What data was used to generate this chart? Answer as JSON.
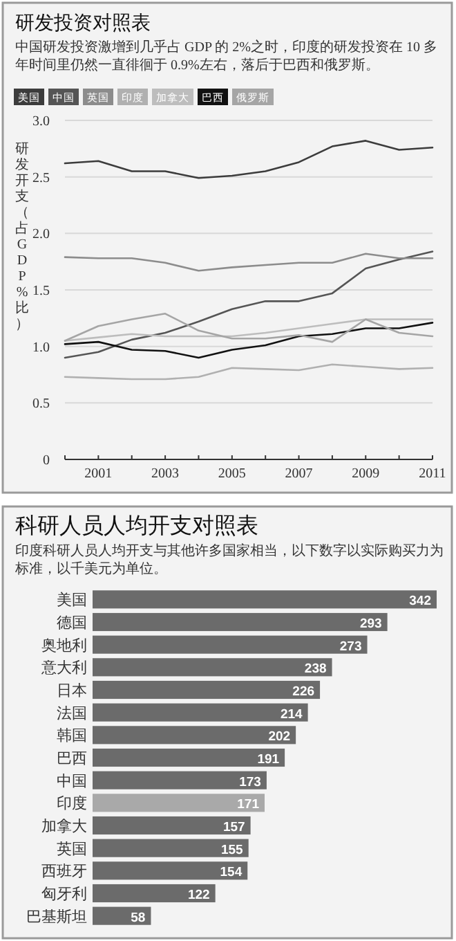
{
  "chart_data": [
    {
      "type": "line",
      "title": "研发投资对照表",
      "subtitle": "中国研发投资激增到几乎占 GDP 的 2%之时，印度的研发投资在 10 多年时间里仍然一直徘徊于 0.9%左右，落后于巴西和俄罗斯。",
      "ylabel": "研发开支（占 GDP%比）",
      "x": [
        2000,
        2001,
        2002,
        2003,
        2004,
        2005,
        2006,
        2007,
        2008,
        2009,
        2010,
        2011
      ],
      "series": [
        {
          "name": "美国",
          "color": "#3c3c3c",
          "values": [
            2.62,
            2.64,
            2.55,
            2.55,
            2.49,
            2.51,
            2.55,
            2.63,
            2.77,
            2.82,
            2.74,
            2.76
          ]
        },
        {
          "name": "中国",
          "color": "#555555",
          "values": [
            0.9,
            0.95,
            1.06,
            1.12,
            1.22,
            1.33,
            1.4,
            1.4,
            1.47,
            1.69,
            1.77,
            1.84
          ]
        },
        {
          "name": "英国",
          "color": "#8c8c8c",
          "values": [
            1.79,
            1.78,
            1.78,
            1.74,
            1.67,
            1.7,
            1.72,
            1.74,
            1.74,
            1.82,
            1.78,
            1.78
          ]
        },
        {
          "name": "印度",
          "color": "#b0b0b0",
          "values": [
            0.73,
            0.72,
            0.71,
            0.71,
            0.73,
            0.81,
            0.8,
            0.79,
            0.84,
            0.82,
            0.8,
            0.81
          ]
        },
        {
          "name": "加拿大",
          "color": "#bdbdbd",
          "values": [
            1.05,
            1.08,
            1.11,
            1.09,
            1.09,
            1.09,
            1.12,
            1.16,
            1.2,
            1.24,
            1.24,
            1.24
          ]
        },
        {
          "name": "巴西",
          "color": "#111111",
          "values": [
            1.02,
            1.04,
            0.97,
            0.96,
            0.9,
            0.97,
            1.01,
            1.09,
            1.11,
            1.16,
            1.16,
            1.21
          ]
        },
        {
          "name": "俄罗斯",
          "color": "#a5a5a5",
          "values": [
            1.05,
            1.18,
            1.24,
            1.29,
            1.14,
            1.07,
            1.07,
            1.1,
            1.04,
            1.24,
            1.12,
            1.09
          ]
        }
      ],
      "xlim": [
        2000,
        2011
      ],
      "xticks": [
        {
          "value": 2000,
          "label": null
        },
        2001,
        {
          "value": 2002,
          "label": null
        },
        2003,
        {
          "value": 2004,
          "label": null
        },
        2005,
        {
          "value": 2006,
          "label": null
        },
        2007,
        {
          "value": 2008,
          "label": null
        },
        2009,
        {
          "value": 2010,
          "label": null
        },
        2011
      ],
      "ylim": [
        0,
        3.0
      ],
      "yticks": [
        0,
        {
          "value": 0.5,
          "label": "0.5"
        },
        {
          "value": 1,
          "label": "1.0"
        },
        {
          "value": 1.5,
          "label": "1.5"
        },
        {
          "value": 2,
          "label": "2.0"
        },
        {
          "value": 2.5,
          "label": "2.5"
        },
        {
          "value": 3,
          "label": "3.0"
        }
      ],
      "grid": "y",
      "legend": "top left"
    },
    {
      "type": "bar",
      "orientation": "horizontal",
      "title": "科研人员人均开支对照表",
      "subtitle": "印度科研人员人均开支与其他许多国家相当，以下数字以实际购买力为标准，以千美元为单位。",
      "categories": [
        "美国",
        "德国",
        "奥地利",
        "意大利",
        "日本",
        "法国",
        "韩国",
        "巴西",
        "中国",
        "印度",
        "加拿大",
        "英国",
        "西班牙",
        "匈牙利",
        "巴基斯坦"
      ],
      "values": [
        342,
        293,
        273,
        238,
        226,
        214,
        202,
        191,
        173,
        171,
        157,
        155,
        154,
        122,
        58
      ],
      "colors": [
        "#6b6b6b",
        "#6b6b6b",
        "#6b6b6b",
        "#6b6b6b",
        "#6b6b6b",
        "#6b6b6b",
        "#6b6b6b",
        "#6b6b6b",
        "#6b6b6b",
        "#a9a9a9",
        "#6b6b6b",
        "#6b6b6b",
        "#6b6b6b",
        "#6b6b6b",
        "#6b6b6b"
      ],
      "data_labels": true
    }
  ]
}
